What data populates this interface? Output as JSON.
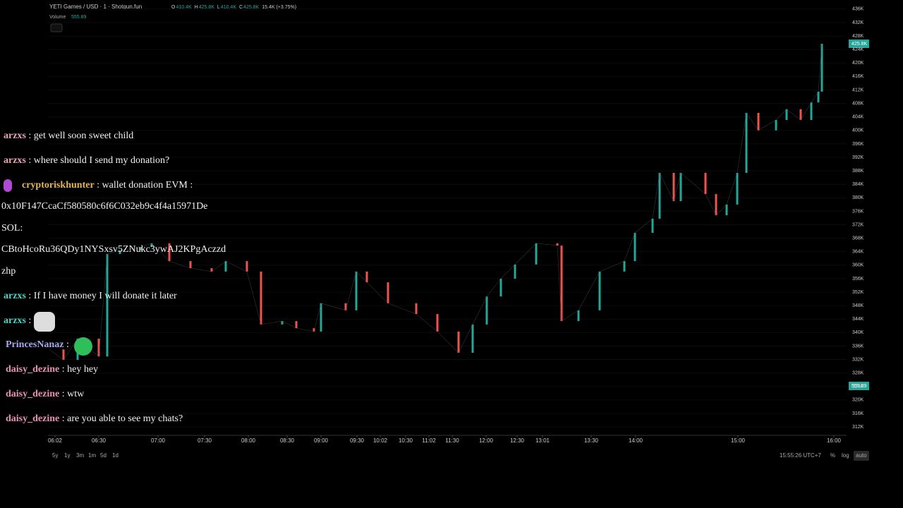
{
  "header": {
    "title": "YETI Games / USD · 1 · Shotgun.fun",
    "ohlc": [
      "O",
      "410.4K",
      "H",
      "425.8K",
      "L",
      "410.4K",
      "C",
      "425.8K",
      "15.4K (+3.75%)"
    ],
    "volume_label": "Volume",
    "volume_value": "555.89"
  },
  "chart_data": {
    "type": "line",
    "up_color": "#26a69a",
    "down_color": "#ef5350",
    "x": [
      2,
      22,
      42,
      72,
      84,
      102,
      132,
      147,
      172,
      202,
      232,
      252,
      282,
      302,
      332,
      352,
      377,
      387,
      422,
      437,
      452,
      482,
      522,
      552,
      582,
      602,
      622,
      642,
      662,
      692,
      722,
      728,
      752,
      782,
      817,
      832,
      857,
      867,
      887,
      897,
      932,
      947,
      962,
      977,
      990,
      1007,
      1032,
      1047,
      1067,
      1082,
      1092,
      1097
    ],
    "values": [
      335000,
      331900,
      338200,
      332900,
      363300,
      364400,
      365400,
      366500,
      361200,
      359100,
      358100,
      361200,
      358100,
      342400,
      343400,
      341300,
      340300,
      348700,
      346600,
      358100,
      354900,
      348700,
      345500,
      340300,
      334000,
      342400,
      350700,
      356000,
      360200,
      366500,
      365800,
      343400,
      346600,
      358100,
      361200,
      369600,
      373800,
      387400,
      379000,
      387400,
      381100,
      374800,
      378000,
      387400,
      405200,
      400000,
      403100,
      406300,
      403100,
      408300,
      411500,
      425700
    ],
    "xlim": [
      0,
      1212
    ],
    "xticks": [
      {
        "value": 10,
        "label": "06:02"
      },
      {
        "value": 72,
        "label": "06:30"
      },
      {
        "value": 156,
        "label": "07:00"
      },
      {
        "value": 222,
        "label": "07:30"
      },
      {
        "value": 284,
        "label": "08:00"
      },
      {
        "value": 339,
        "label": "08:30"
      },
      {
        "value": 387,
        "label": "09:00"
      },
      {
        "value": 438,
        "label": "09:30"
      },
      {
        "value": 471,
        "label": "10:02"
      },
      {
        "value": 507,
        "label": "10:30"
      },
      {
        "value": 540,
        "label": "11:02"
      },
      {
        "value": 573,
        "label": "11:30"
      },
      {
        "value": 621,
        "label": "12:00"
      },
      {
        "value": 665,
        "label": "12:30"
      },
      {
        "value": 701,
        "label": "13:01"
      },
      {
        "value": 770,
        "label": "13:30"
      },
      {
        "value": 833,
        "label": "14:00"
      },
      {
        "value": 978,
        "label": "15:00"
      },
      {
        "value": 1114,
        "label": "16:00"
      }
    ],
    "ylim": [
      309500,
      438700
    ],
    "yticks": [
      {
        "value": 312000,
        "label": "312K"
      },
      {
        "value": 316000,
        "label": "316K"
      },
      {
        "value": 320000,
        "label": "320K"
      },
      {
        "value": 324000,
        "label": "324K"
      },
      {
        "value": 328000,
        "label": "328K"
      },
      {
        "value": 332000,
        "label": "332K"
      },
      {
        "value": 336000,
        "label": "336K"
      },
      {
        "value": 340000,
        "label": "340K"
      },
      {
        "value": 344000,
        "label": "344K"
      },
      {
        "value": 348000,
        "label": "348K"
      },
      {
        "value": 352000,
        "label": "352K"
      },
      {
        "value": 356000,
        "label": "356K"
      },
      {
        "value": 360000,
        "label": "360K"
      },
      {
        "value": 364000,
        "label": "364K"
      },
      {
        "value": 368000,
        "label": "368K"
      },
      {
        "value": 372000,
        "label": "372K"
      },
      {
        "value": 376000,
        "label": "376K"
      },
      {
        "value": 380000,
        "label": "380K"
      },
      {
        "value": 384000,
        "label": "384K"
      },
      {
        "value": 388000,
        "label": "388K"
      },
      {
        "value": 392000,
        "label": "392K"
      },
      {
        "value": 396000,
        "label": "396K"
      },
      {
        "value": 400000,
        "label": "400K"
      },
      {
        "value": 404000,
        "label": "404K"
      },
      {
        "value": 408000,
        "label": "408K"
      },
      {
        "value": 412000,
        "label": "412K"
      },
      {
        "value": 416000,
        "label": "416K"
      },
      {
        "value": 420000,
        "label": "420K"
      },
      {
        "value": 424000,
        "label": "424K"
      },
      {
        "value": 428000,
        "label": "428K"
      },
      {
        "value": 432000,
        "label": "432K"
      },
      {
        "value": 436000,
        "label": "436K"
      }
    ],
    "grid": true
  },
  "price_tags": [
    "425.8K",
    "555.89"
  ],
  "timeframes": [
    "5y",
    "1y",
    "3m",
    "1m",
    "5d",
    "1d"
  ],
  "footer": {
    "clock": "15:55:26 UTC+7",
    "options": [
      "%",
      "log",
      "auto"
    ]
  },
  "chat": [
    {
      "user": "arzxs",
      "color": "#e8a3b3",
      "text": ": get well soon sweet child"
    },
    {
      "user": "arzxs",
      "color": "#e8a3b3",
      "text": ": where should I send my donation?"
    },
    {
      "user": "cryptoriskhunter",
      "color": "#e2b656",
      "text": ": wallet donation EVM :"
    },
    {
      "text": "0x10F147CcaCf580580c6f6C032eb9c4f4a15971De"
    },
    {
      "text": "SOL:"
    },
    {
      "text": "CBtoHcoRu36QDy1NYSxsv5ZNukc3ywAJ2KPgAczzd"
    },
    {
      "text": "zhp"
    },
    {
      "user": "arzxs",
      "color": "#4fd1c5",
      "text": ": If I have money I will donate it later"
    },
    {
      "user": "arzxs",
      "color": "#4fd1c5",
      "text": ":"
    },
    {
      "user": "PrincesNanaz",
      "color": "#a9a6ec",
      "text": ":"
    },
    {
      "user": "daisy_dezine",
      "color": "#e891b4",
      "text": ": hey hey"
    },
    {
      "user": "daisy_dezine",
      "color": "#e891b4",
      "text": ": wtw"
    },
    {
      "user": "daisy_dezine",
      "color": "#e891b4",
      "text": ": are you able to see my chats?"
    }
  ]
}
